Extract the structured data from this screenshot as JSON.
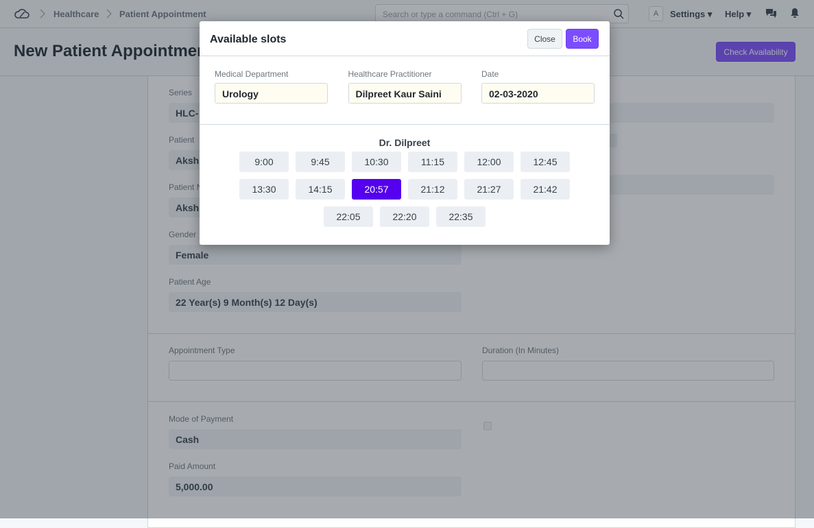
{
  "navbar": {
    "breadcrumbs": [
      "Healthcare",
      "Patient Appointment"
    ],
    "search_placeholder": "Search or type a command (Ctrl + G)",
    "avatar": "A",
    "settings": "Settings",
    "help": "Help"
  },
  "page": {
    "title": "New Patient Appointmen",
    "action": "Check Availability"
  },
  "form": {
    "fields": [
      {
        "label": "Series",
        "value": "HLC-"
      },
      {
        "label": "Patient",
        "value": "Aksh"
      },
      {
        "label": "Patient N",
        "value": "Akshi"
      },
      {
        "label": "Gender",
        "value": "Female"
      },
      {
        "label": "Patient Age",
        "value": "22 Year(s) 9 Month(s) 12 Day(s)"
      },
      {
        "label": "Appointment Type"
      },
      {
        "label": "Duration (In Minutes)"
      },
      {
        "label": "Mode of Payment",
        "value": "Cash"
      },
      {
        "label": "Paid Amount",
        "value": "5,000.00"
      }
    ]
  },
  "modal": {
    "title": "Available slots",
    "close": "Close",
    "book": "Book",
    "fields": [
      {
        "label": "Medical Department",
        "value": "Urology"
      },
      {
        "label": "Healthcare Practitioner",
        "value": "Dilpreet Kaur Saini"
      },
      {
        "label": "Date",
        "value": "02-03-2020"
      }
    ],
    "practitioner_heading": "Dr. Dilpreet",
    "slots": [
      "9:00",
      "9:45",
      "10:30",
      "11:15",
      "12:00",
      "12:45",
      "13:30",
      "14:15",
      "20:57",
      "21:12",
      "21:27",
      "21:42",
      "22:05",
      "22:20",
      "22:35"
    ],
    "selected_slot": 8
  }
}
